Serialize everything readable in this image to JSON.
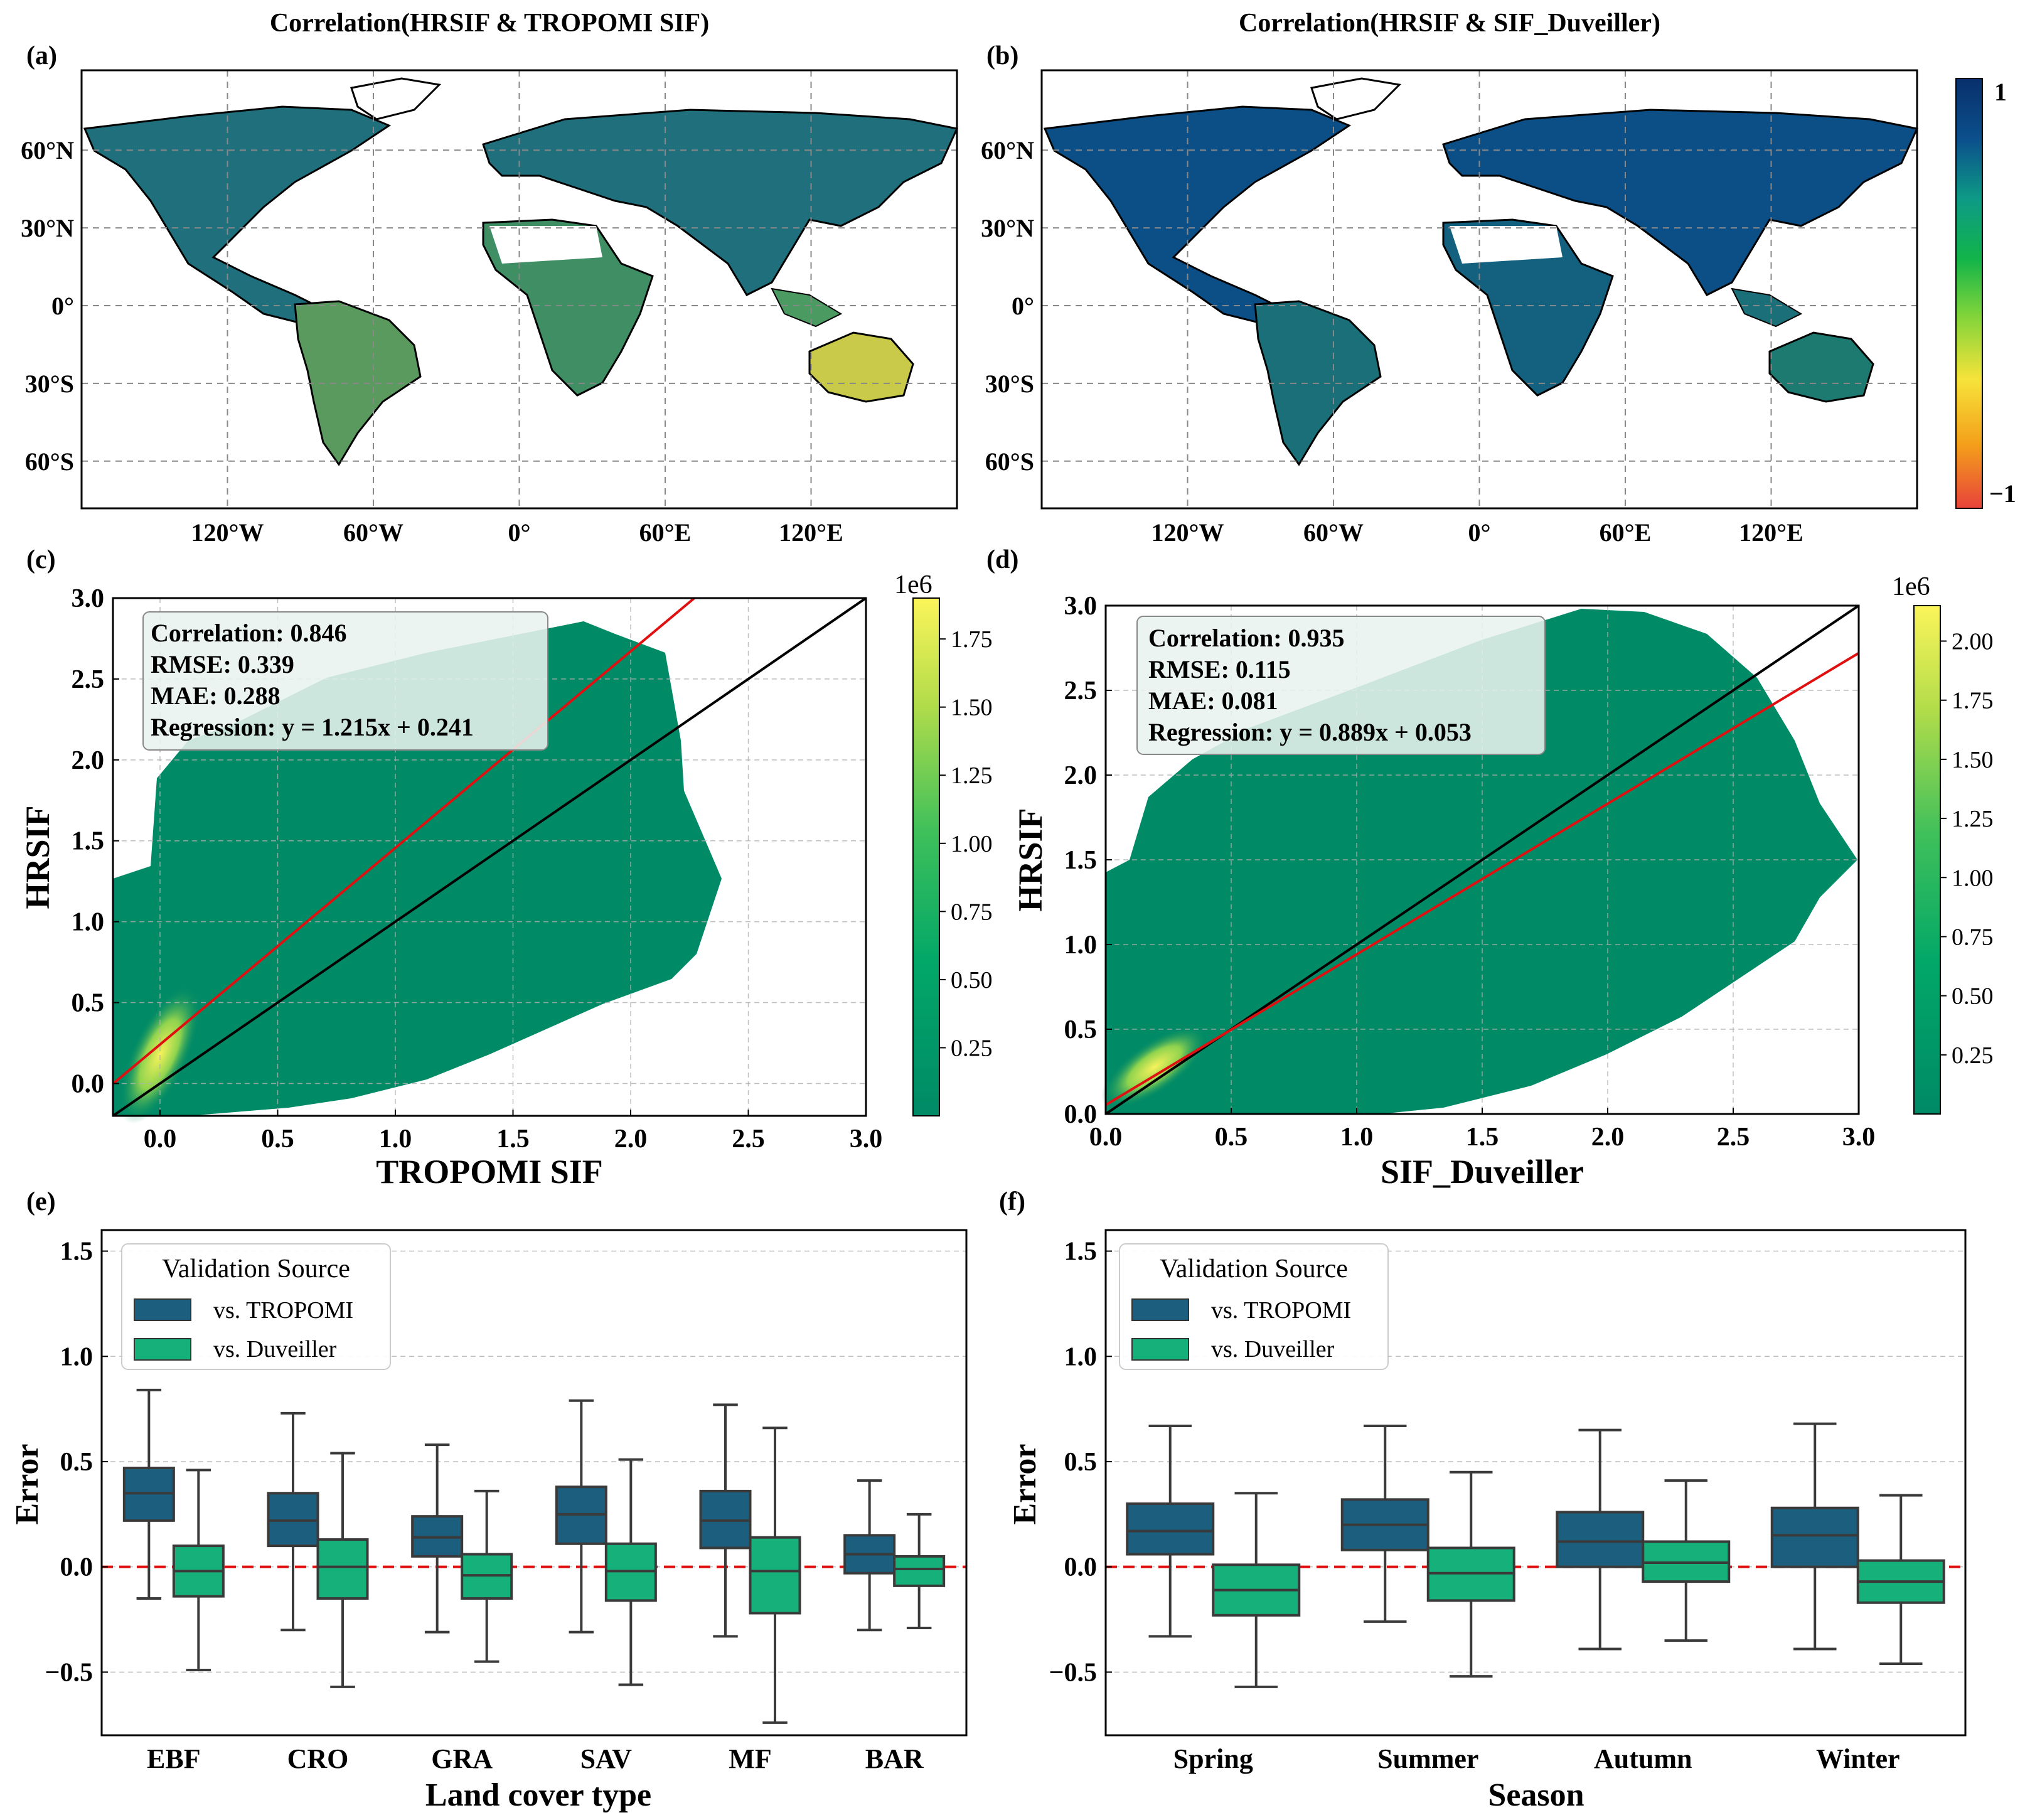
{
  "colors": {
    "tropomi": "#1b5e7e",
    "duveiller": "#16b07a",
    "hexbin": "#008a66",
    "zero_line": "#e01010",
    "regression": "#e01010",
    "one_to_one": "#000000",
    "grid": "#b0b0b0",
    "land_a": "#1f6f7c",
    "land_b": "#0c4f86",
    "coast": "#000000"
  },
  "panel_a": {
    "label": "(a)",
    "title": "Correlation(HRSIF & TROPOMI SIF)"
  },
  "panel_b": {
    "label": "(b)",
    "title": "Correlation(HRSIF & SIF_Duveiller)"
  },
  "map_axes": {
    "lon_ticks": [
      "120°W",
      "60°W",
      "0°",
      "60°E",
      "120°E"
    ],
    "lat_ticks": [
      "60°N",
      "30°N",
      "0°",
      "30°S",
      "60°S"
    ]
  },
  "corr_colorbar": {
    "max_label": "1",
    "min_label": "−1",
    "stops": [
      "#e8433b",
      "#f4a01a",
      "#f6e33a",
      "#7fd43a",
      "#12b44a",
      "#0d9a86",
      "#0b4f8c",
      "#08306b"
    ]
  },
  "panel_c": {
    "label": "(c)",
    "xlabel": "TROPOMI SIF",
    "ylabel": "HRSIF",
    "stats": [
      "Correlation: 0.846",
      "RMSE: 0.339",
      "MAE: 0.288",
      "Regression: y = 1.215x + 0.241"
    ],
    "cb_exp": "1e6",
    "cb_ticks": [
      "0.25",
      "0.50",
      "0.75",
      "1.00",
      "1.25",
      "1.50",
      "1.75"
    ]
  },
  "panel_d": {
    "label": "(d)",
    "xlabel": "SIF_Duveiller",
    "ylabel": "HRSIF",
    "stats": [
      "Correlation: 0.935",
      "RMSE: 0.115",
      "MAE: 0.081",
      "Regression: y = 0.889x + 0.053"
    ],
    "cb_exp": "1e6",
    "cb_ticks": [
      "0.25",
      "0.50",
      "0.75",
      "1.00",
      "1.25",
      "1.50",
      "1.75",
      "2.00"
    ]
  },
  "panel_e": {
    "label": "(e)",
    "xlabel": "Land cover type",
    "ylabel": "Error",
    "legend_title": "Validation Source",
    "legend_items": [
      "vs. TROPOMI",
      "vs. Duveiller"
    ]
  },
  "panel_f": {
    "label": "(f)",
    "xlabel": "Season",
    "ylabel": "Error",
    "legend_title": "Validation Source",
    "legend_items": [
      "vs. TROPOMI",
      "vs. Duveiller"
    ]
  },
  "chart_data": [
    {
      "type": "heatmap",
      "title": "Correlation(HRSIF & TROPOMI SIF)",
      "xticks": [
        "120°W",
        "60°W",
        "0°",
        "60°E",
        "120°E"
      ],
      "yticks": [
        "60°N",
        "30°N",
        "0°",
        "30°S",
        "60°S"
      ],
      "colorbar_range": [
        -1,
        1
      ]
    },
    {
      "type": "heatmap",
      "title": "Correlation(HRSIF & SIF_Duveiller)",
      "xticks": [
        "120°W",
        "60°W",
        "0°",
        "60°E",
        "120°E"
      ],
      "yticks": [
        "60°N",
        "30°N",
        "0°",
        "30°S",
        "60°S"
      ],
      "colorbar_range": [
        -1,
        1
      ]
    },
    {
      "type": "scatter",
      "xlabel": "TROPOMI SIF",
      "ylabel": "HRSIF",
      "xlim": [
        -0.2,
        3.0
      ],
      "ylim": [
        -0.2,
        3.0
      ],
      "xticks": [
        0.0,
        0.5,
        1.0,
        1.5,
        2.0,
        2.5,
        3.0
      ],
      "yticks": [
        0.0,
        0.5,
        1.0,
        1.5,
        2.0,
        2.5,
        3.0
      ],
      "regression": {
        "slope": 1.215,
        "intercept": 0.241
      },
      "one_to_one": true,
      "colorbar_range": [
        0,
        1.9
      ],
      "colorbar_ticks": [
        0.25,
        0.5,
        0.75,
        1.0,
        1.25,
        1.5,
        1.75
      ],
      "grid": true
    },
    {
      "type": "scatter",
      "xlabel": "SIF_Duveiller",
      "ylabel": "HRSIF",
      "xlim": [
        0.0,
        3.0
      ],
      "ylim": [
        0.0,
        3.0
      ],
      "xticks": [
        0.0,
        0.5,
        1.0,
        1.5,
        2.0,
        2.5,
        3.0
      ],
      "yticks": [
        0.0,
        0.5,
        1.0,
        1.5,
        2.0,
        2.5,
        3.0
      ],
      "regression": {
        "slope": 0.889,
        "intercept": 0.053
      },
      "one_to_one": true,
      "colorbar_range": [
        0,
        2.15
      ],
      "colorbar_ticks": [
        0.25,
        0.5,
        0.75,
        1.0,
        1.25,
        1.5,
        1.75,
        2.0
      ],
      "grid": true
    },
    {
      "type": "box",
      "xlabel": "Land cover type",
      "ylabel": "Error",
      "ylim": [
        -0.8,
        1.6
      ],
      "yticks": [
        -0.5,
        0.0,
        0.5,
        1.0,
        1.5
      ],
      "categories": [
        "EBF",
        "CRO",
        "GRA",
        "SAV",
        "MF",
        "BAR"
      ],
      "legend_placement": "top-left",
      "series": [
        {
          "name": "vs. TROPOMI",
          "boxes": [
            {
              "whislo": -0.15,
              "q1": 0.22,
              "med": 0.35,
              "q3": 0.47,
              "whishi": 0.84
            },
            {
              "whislo": -0.3,
              "q1": 0.1,
              "med": 0.22,
              "q3": 0.35,
              "whishi": 0.73
            },
            {
              "whislo": -0.31,
              "q1": 0.05,
              "med": 0.14,
              "q3": 0.24,
              "whishi": 0.58
            },
            {
              "whislo": -0.31,
              "q1": 0.11,
              "med": 0.25,
              "q3": 0.38,
              "whishi": 0.79
            },
            {
              "whislo": -0.33,
              "q1": 0.09,
              "med": 0.22,
              "q3": 0.36,
              "whishi": 0.77
            },
            {
              "whislo": -0.3,
              "q1": -0.03,
              "med": 0.06,
              "q3": 0.15,
              "whishi": 0.41
            }
          ]
        },
        {
          "name": "vs. Duveiller",
          "boxes": [
            {
              "whislo": -0.49,
              "q1": -0.14,
              "med": -0.02,
              "q3": 0.1,
              "whishi": 0.46
            },
            {
              "whislo": -0.57,
              "q1": -0.15,
              "med": 0.0,
              "q3": 0.13,
              "whishi": 0.54
            },
            {
              "whislo": -0.45,
              "q1": -0.15,
              "med": -0.04,
              "q3": 0.06,
              "whishi": 0.36
            },
            {
              "whislo": -0.56,
              "q1": -0.16,
              "med": -0.02,
              "q3": 0.11,
              "whishi": 0.51
            },
            {
              "whislo": -0.74,
              "q1": -0.22,
              "med": -0.02,
              "q3": 0.14,
              "whishi": 0.66
            },
            {
              "whislo": -0.29,
              "q1": -0.09,
              "med": -0.01,
              "q3": 0.05,
              "whishi": 0.25
            }
          ]
        }
      ]
    },
    {
      "type": "box",
      "xlabel": "Season",
      "ylabel": "Error",
      "ylim": [
        -0.8,
        1.6
      ],
      "yticks": [
        -0.5,
        0.0,
        0.5,
        1.0,
        1.5
      ],
      "categories": [
        "Spring",
        "Summer",
        "Autumn",
        "Winter"
      ],
      "legend_placement": "top-left",
      "series": [
        {
          "name": "vs. TROPOMI",
          "boxes": [
            {
              "whislo": -0.33,
              "q1": 0.06,
              "med": 0.17,
              "q3": 0.3,
              "whishi": 0.67
            },
            {
              "whislo": -0.26,
              "q1": 0.08,
              "med": 0.2,
              "q3": 0.32,
              "whishi": 0.67
            },
            {
              "whislo": -0.39,
              "q1": 0.0,
              "med": 0.12,
              "q3": 0.26,
              "whishi": 0.65
            },
            {
              "whislo": -0.39,
              "q1": 0.0,
              "med": 0.15,
              "q3": 0.28,
              "whishi": 0.68
            }
          ]
        },
        {
          "name": "vs. Duveiller",
          "boxes": [
            {
              "whislo": -0.57,
              "q1": -0.23,
              "med": -0.11,
              "q3": 0.01,
              "whishi": 0.35
            },
            {
              "whislo": -0.52,
              "q1": -0.16,
              "med": -0.03,
              "q3": 0.09,
              "whishi": 0.45
            },
            {
              "whislo": -0.35,
              "q1": -0.07,
              "med": 0.02,
              "q3": 0.12,
              "whishi": 0.41
            },
            {
              "whislo": -0.46,
              "q1": -0.17,
              "med": -0.07,
              "q3": 0.03,
              "whishi": 0.34
            }
          ]
        }
      ]
    }
  ]
}
